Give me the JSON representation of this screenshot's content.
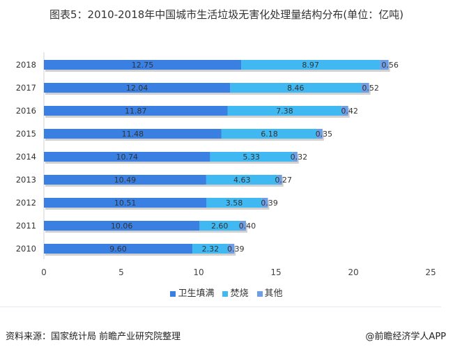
{
  "chart_data": {
    "type": "bar",
    "orientation": "horizontal",
    "stacked": true,
    "title": "图表5：2010-2018年中国城市生活垃圾无害化处理量结构分布(单位：亿吨)",
    "categories": [
      "2018",
      "2017",
      "2016",
      "2015",
      "2014",
      "2013",
      "2012",
      "2011",
      "2010"
    ],
    "series": [
      {
        "name": "卫生填满",
        "color": "#3a7fe2",
        "values": [
          12.75,
          12.04,
          11.87,
          11.48,
          10.74,
          10.49,
          10.51,
          10.06,
          9.6
        ]
      },
      {
        "name": "焚烧",
        "color": "#40b8f2",
        "values": [
          8.97,
          8.46,
          7.38,
          6.18,
          5.33,
          4.63,
          3.58,
          2.6,
          2.32
        ]
      },
      {
        "name": "其他",
        "color": "#6e9fe6",
        "values": [
          0.56,
          0.52,
          0.42,
          0.35,
          0.32,
          0.27,
          0.39,
          0.4,
          0.39
        ]
      }
    ],
    "xlim": [
      0,
      25
    ],
    "xticks": [
      "0",
      "5",
      "10",
      "15",
      "20",
      "25"
    ],
    "legend": "bottom",
    "grid": false
  },
  "footer": {
    "source": "资料来源：国家统计局 前瞻产业研究院整理",
    "brand": "@前瞻经济学人APP"
  }
}
